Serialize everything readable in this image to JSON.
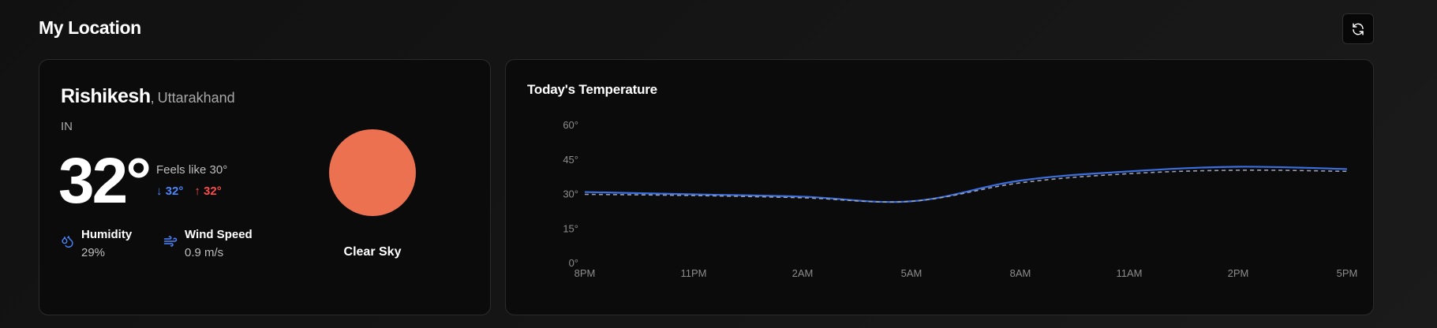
{
  "header": {
    "title": "My Location"
  },
  "icons": {
    "refresh": "refresh-icon",
    "humidity": "droplet-icon",
    "wind": "wind-icon",
    "weather": "sun-icon"
  },
  "colors": {
    "accent_blue": "#4a86ff",
    "accent_red": "#ff4a4a",
    "sun": "#ec7150",
    "line_main": "#3b6fe0",
    "line_feels": "#9aa0b4"
  },
  "weather": {
    "city": "Rishikesh",
    "comma": ",",
    "region": "Uttarakhand",
    "country": "IN",
    "temperature": "32°",
    "feels_like": "Feels like 30°",
    "min_temp": "32°",
    "max_temp": "32°",
    "min_arrow": "↓",
    "max_arrow": "↑",
    "humidity_label": "Humidity",
    "humidity_value": "29%",
    "wind_label": "Wind Speed",
    "wind_value": "0.9 m/s",
    "condition": "Clear Sky"
  },
  "chart_data": {
    "type": "line",
    "title": "Today's Temperature",
    "categories": [
      "8PM",
      "11PM",
      "2AM",
      "5AM",
      "8AM",
      "11AM",
      "2PM",
      "5PM"
    ],
    "y_ticks": [
      "0°",
      "15°",
      "30°",
      "45°",
      "60°"
    ],
    "ylim": [
      0,
      60
    ],
    "grid": false,
    "series": [
      {
        "values": [
          31,
          30,
          29,
          27,
          36,
          40,
          42,
          41
        ]
      },
      {
        "values": [
          30,
          29.5,
          28.5,
          27,
          35,
          39,
          40.5,
          40
        ],
        "style": "dashed"
      }
    ]
  }
}
